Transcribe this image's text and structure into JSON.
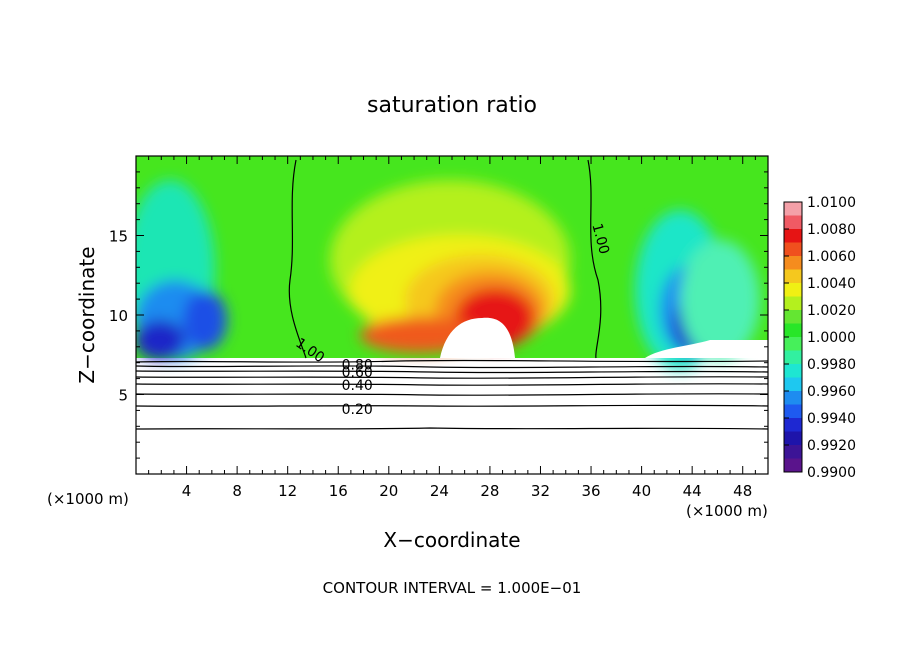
{
  "chart_data": {
    "type": "heatmap",
    "title": "saturation ratio",
    "xlabel": "X−coordinate",
    "ylabel": "Z−coordinate",
    "x_unit_left": "(×1000 m)",
    "x_unit_right": "(×1000 m)",
    "footer": "CONTOUR INTERVAL =  1.000E−01",
    "xlim": [
      0,
      50
    ],
    "ylim": [
      0,
      20
    ],
    "x_ticks": [
      4,
      8,
      12,
      16,
      20,
      24,
      28,
      32,
      36,
      40,
      44,
      48
    ],
    "y_ticks": [
      5,
      10,
      15
    ],
    "colorbar": {
      "labels": [
        "1.0100",
        "1.0080",
        "1.0060",
        "1.0040",
        "1.0020",
        "1.0000",
        "0.9980",
        "0.9960",
        "0.9940",
        "0.9920",
        "0.9900"
      ],
      "colors": [
        "#f4a0a8",
        "#f05a64",
        "#e61414",
        "#f0501e",
        "#f58c1e",
        "#f5c81e",
        "#f0f014",
        "#b4f01e",
        "#64e632",
        "#28e628",
        "#46f05a",
        "#32f0a0",
        "#1ee6d2",
        "#1ec8f0",
        "#1e8cf0",
        "#1e5af0",
        "#1e28d2",
        "#1e14aa",
        "#3c1496",
        "#5a148c"
      ]
    },
    "contour_labels": [
      {
        "text": "1.00",
        "x": 13.8,
        "z": 7.8
      },
      {
        "text": "1.00",
        "x": 36.8,
        "z": 14.8
      },
      {
        "text": "0.80",
        "x": 17.5,
        "z": 6.9
      },
      {
        "text": "0.60",
        "x": 17.5,
        "z": 6.4
      },
      {
        "text": "0.40",
        "x": 17.5,
        "z": 5.6
      },
      {
        "text": "0.20",
        "x": 17.5,
        "z": 4.1
      }
    ]
  }
}
